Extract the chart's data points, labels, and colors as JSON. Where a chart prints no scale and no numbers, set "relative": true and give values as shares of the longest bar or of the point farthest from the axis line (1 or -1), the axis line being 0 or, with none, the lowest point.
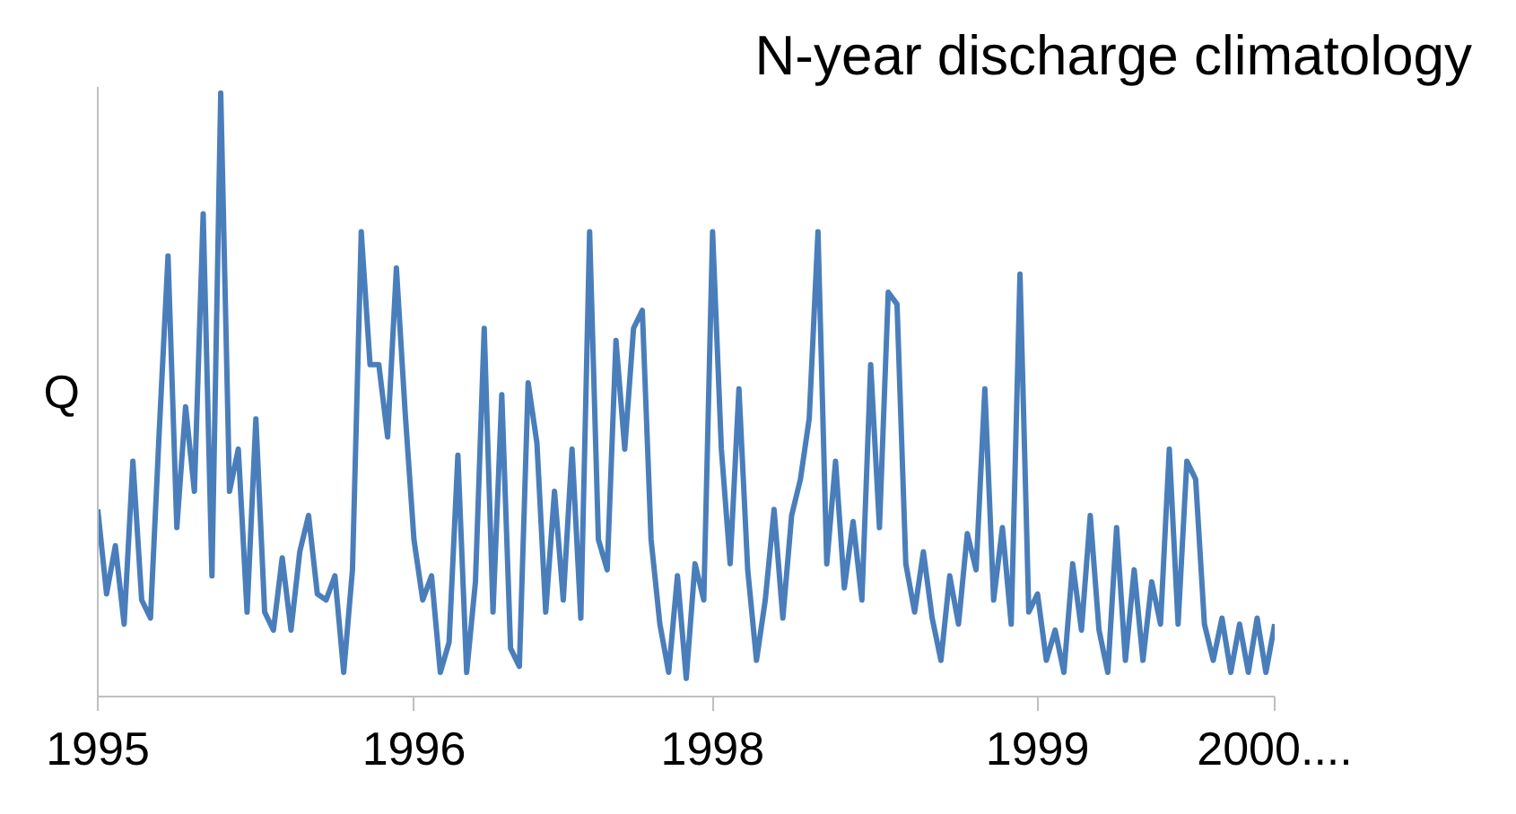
{
  "chart_data": {
    "type": "line",
    "title": "N-year discharge climatology",
    "ylabel": "Q",
    "relative": true,
    "grid": false,
    "marker": "none",
    "line_style": "solid",
    "categories": [
      "1995",
      null,
      null,
      null,
      null,
      null,
      null,
      null,
      null,
      null,
      null,
      null,
      null,
      null,
      null,
      null,
      null,
      null,
      null,
      null,
      null,
      null,
      null,
      null,
      null,
      null,
      null,
      null,
      null,
      null,
      null,
      null,
      null,
      null,
      null,
      null,
      "1996",
      null,
      null,
      null,
      null,
      null,
      null,
      null,
      null,
      null,
      null,
      null,
      null,
      null,
      null,
      null,
      null,
      null,
      null,
      null,
      null,
      null,
      null,
      null,
      null,
      null,
      null,
      null,
      null,
      null,
      null,
      null,
      null,
      null,
      "1998",
      null,
      null,
      null,
      null,
      null,
      null,
      null,
      null,
      null,
      null,
      null,
      null,
      null,
      null,
      null,
      null,
      null,
      null,
      null,
      null,
      null,
      null,
      null,
      null,
      null,
      null,
      null,
      null,
      null,
      null,
      null,
      null,
      null,
      null,
      null,
      null,
      "1999",
      null,
      null,
      null,
      null,
      null,
      null,
      null,
      null,
      null,
      null,
      null,
      null,
      null,
      null,
      null,
      null,
      null,
      null,
      null,
      null,
      null,
      null,
      null,
      null,
      null,
      null,
      "2000...."
    ],
    "series": [
      {
        "color": "#4a7ebb",
        "values": [
          0.31,
          0.17,
          0.25,
          0.12,
          0.39,
          0.16,
          0.13,
          0.44,
          0.73,
          0.28,
          0.48,
          0.34,
          0.8,
          0.2,
          1.0,
          0.34,
          0.41,
          0.14,
          0.46,
          0.14,
          0.11,
          0.23,
          0.11,
          0.24,
          0.3,
          0.17,
          0.16,
          0.2,
          0.04,
          0.21,
          0.77,
          0.55,
          0.55,
          0.43,
          0.71,
          0.47,
          0.26,
          0.16,
          0.2,
          0.04,
          0.09,
          0.4,
          0.04,
          0.19,
          0.61,
          0.14,
          0.5,
          0.08,
          0.05,
          0.52,
          0.42,
          0.14,
          0.34,
          0.16,
          0.41,
          0.13,
          0.77,
          0.26,
          0.21,
          0.59,
          0.41,
          0.61,
          0.64,
          0.26,
          0.12,
          0.04,
          0.2,
          0.03,
          0.22,
          0.16,
          0.77,
          0.41,
          0.22,
          0.51,
          0.21,
          0.06,
          0.16,
          0.31,
          0.13,
          0.3,
          0.36,
          0.46,
          0.77,
          0.22,
          0.39,
          0.18,
          0.29,
          0.16,
          0.55,
          0.28,
          0.67,
          0.65,
          0.22,
          0.14,
          0.24,
          0.13,
          0.06,
          0.2,
          0.12,
          0.27,
          0.21,
          0.51,
          0.16,
          0.28,
          0.12,
          0.7,
          0.14,
          0.17,
          0.06,
          0.11,
          0.04,
          0.22,
          0.11,
          0.3,
          0.11,
          0.04,
          0.28,
          0.06,
          0.21,
          0.06,
          0.19,
          0.12,
          0.41,
          0.12,
          0.39,
          0.36,
          0.12,
          0.06,
          0.13,
          0.04,
          0.12,
          0.04,
          0.13,
          0.04,
          0.12
        ]
      }
    ]
  }
}
